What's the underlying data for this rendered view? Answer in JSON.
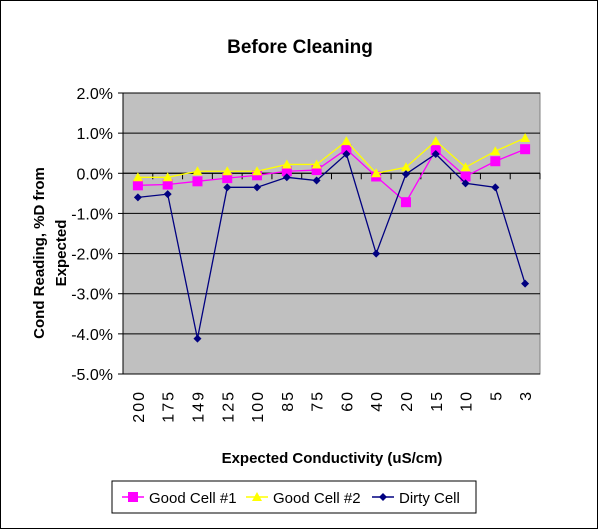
{
  "chart_data": {
    "type": "line",
    "title": "Before Cleaning",
    "xlabel": "Expected Conductivity (uS/cm)",
    "ylabel_line1": "Cond Reading, %D from",
    "ylabel_line2": "Expected",
    "categories": [
      "200",
      "175",
      "149",
      "125",
      "100",
      "85",
      "75",
      "60",
      "40",
      "20",
      "15",
      "10",
      "5",
      "3"
    ],
    "ylim": [
      -5.0,
      2.0
    ],
    "yticks": [
      "2.0%",
      "1.0%",
      "0.0%",
      "-1.0%",
      "-2.0%",
      "-3.0%",
      "-4.0%",
      "-5.0%"
    ],
    "ytick_values": [
      2.0,
      1.0,
      0.0,
      -1.0,
      -2.0,
      -3.0,
      -4.0,
      -5.0
    ],
    "grid": true,
    "plot_background": "#c0c0c0",
    "legend_position": "bottom",
    "series": [
      {
        "name": "Good Cell #1",
        "color": "#ff00ff",
        "marker": "square",
        "values": [
          -0.3,
          -0.28,
          -0.2,
          -0.12,
          -0.05,
          0.05,
          0.08,
          0.6,
          -0.08,
          -0.72,
          0.58,
          -0.08,
          0.3,
          0.6
        ]
      },
      {
        "name": "Good Cell #2",
        "color": "#ffff00",
        "marker": "triangle",
        "values": [
          -0.1,
          -0.1,
          0.05,
          0.05,
          0.05,
          0.22,
          0.22,
          0.8,
          0.0,
          0.15,
          0.8,
          0.15,
          0.55,
          0.88
        ]
      },
      {
        "name": "Dirty Cell",
        "color": "#000080",
        "marker": "diamond",
        "values": [
          -0.6,
          -0.52,
          -4.12,
          -0.35,
          -0.35,
          -0.1,
          -0.18,
          0.48,
          -2.0,
          -0.02,
          0.48,
          -0.25,
          -0.35,
          -2.75
        ]
      }
    ]
  }
}
